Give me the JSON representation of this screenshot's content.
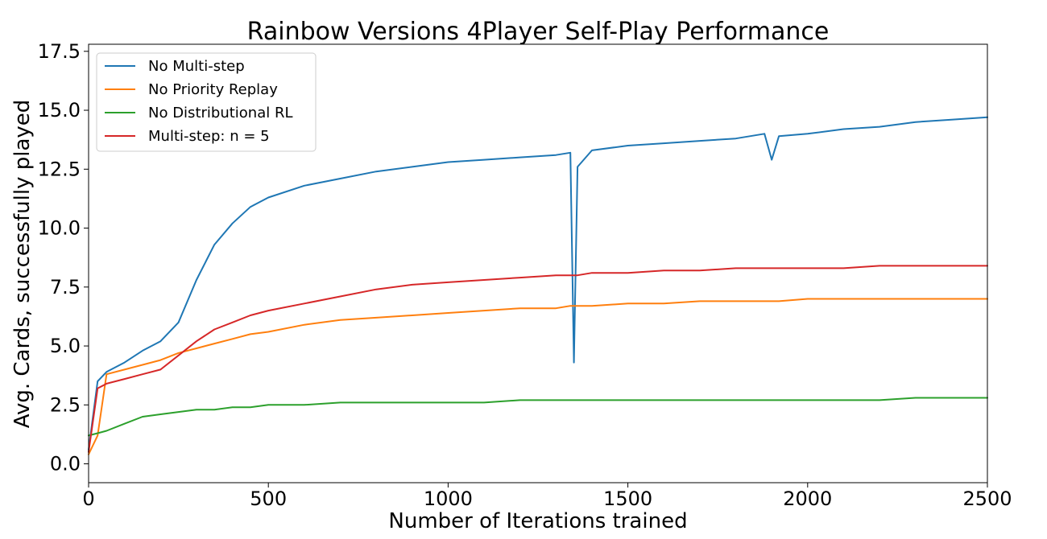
{
  "chart_data": {
    "type": "line",
    "title": "Rainbow Versions 4Player Self-Play Performance",
    "xlabel": "Number of Iterations trained",
    "ylabel": "Avg. Cards, successfully played",
    "xlim": [
      0,
      2500
    ],
    "ylim": [
      -0.8,
      17.8
    ],
    "x_ticks": [
      0,
      500,
      1000,
      1500,
      2000,
      2500
    ],
    "x_tick_labels": [
      "0",
      "500",
      "1000",
      "1500",
      "2000",
      "2500"
    ],
    "y_ticks": [
      0,
      2.5,
      5,
      7.5,
      10,
      12.5,
      15,
      17.5
    ],
    "y_tick_labels": [
      "0.0",
      "2.5",
      "5.0",
      "7.5",
      "10.0",
      "12.5",
      "15.0",
      "17.5"
    ],
    "grid": false,
    "legend_position": "top-left",
    "x": [
      0,
      25,
      50,
      100,
      150,
      200,
      250,
      300,
      350,
      400,
      450,
      500,
      600,
      700,
      800,
      900,
      1000,
      1100,
      1200,
      1300,
      1340,
      1350,
      1360,
      1400,
      1500,
      1600,
      1700,
      1800,
      1880,
      1900,
      1920,
      2000,
      2100,
      2200,
      2300,
      2400,
      2500
    ],
    "series": [
      {
        "name": "No Multi-step",
        "color": "#1f77b4",
        "values": [
          0.6,
          3.5,
          3.9,
          4.3,
          4.8,
          5.2,
          6.0,
          7.8,
          9.3,
          10.2,
          10.9,
          11.3,
          11.8,
          12.1,
          12.4,
          12.6,
          12.8,
          12.9,
          13.0,
          13.1,
          13.2,
          4.3,
          12.6,
          13.3,
          13.5,
          13.6,
          13.7,
          13.8,
          14.0,
          12.9,
          13.9,
          14.0,
          14.2,
          14.3,
          14.5,
          14.6,
          14.7
        ]
      },
      {
        "name": "No Priority Replay",
        "color": "#ff7f0e",
        "values": [
          0.4,
          1.2,
          3.8,
          4.0,
          4.2,
          4.4,
          4.7,
          4.9,
          5.1,
          5.3,
          5.5,
          5.6,
          5.9,
          6.1,
          6.2,
          6.3,
          6.4,
          6.5,
          6.6,
          6.6,
          6.7,
          6.7,
          6.7,
          6.7,
          6.8,
          6.8,
          6.9,
          6.9,
          6.9,
          6.9,
          6.9,
          7.0,
          7.0,
          7.0,
          7.0,
          7.0,
          7.0
        ]
      },
      {
        "name": "No Distributional RL",
        "color": "#2ca02c",
        "values": [
          1.2,
          1.3,
          1.4,
          1.7,
          2.0,
          2.1,
          2.2,
          2.3,
          2.3,
          2.4,
          2.4,
          2.5,
          2.5,
          2.6,
          2.6,
          2.6,
          2.6,
          2.6,
          2.7,
          2.7,
          2.7,
          2.7,
          2.7,
          2.7,
          2.7,
          2.7,
          2.7,
          2.7,
          2.7,
          2.7,
          2.7,
          2.7,
          2.7,
          2.7,
          2.8,
          2.8,
          2.8
        ]
      },
      {
        "name": "Multi-step: n = 5",
        "color": "#d62728",
        "values": [
          0.5,
          3.2,
          3.4,
          3.6,
          3.8,
          4.0,
          4.6,
          5.2,
          5.7,
          6.0,
          6.3,
          6.5,
          6.8,
          7.1,
          7.4,
          7.6,
          7.7,
          7.8,
          7.9,
          8.0,
          8.0,
          8.0,
          8.0,
          8.1,
          8.1,
          8.2,
          8.2,
          8.3,
          8.3,
          8.3,
          8.3,
          8.3,
          8.3,
          8.4,
          8.4,
          8.4,
          8.4
        ]
      }
    ]
  }
}
